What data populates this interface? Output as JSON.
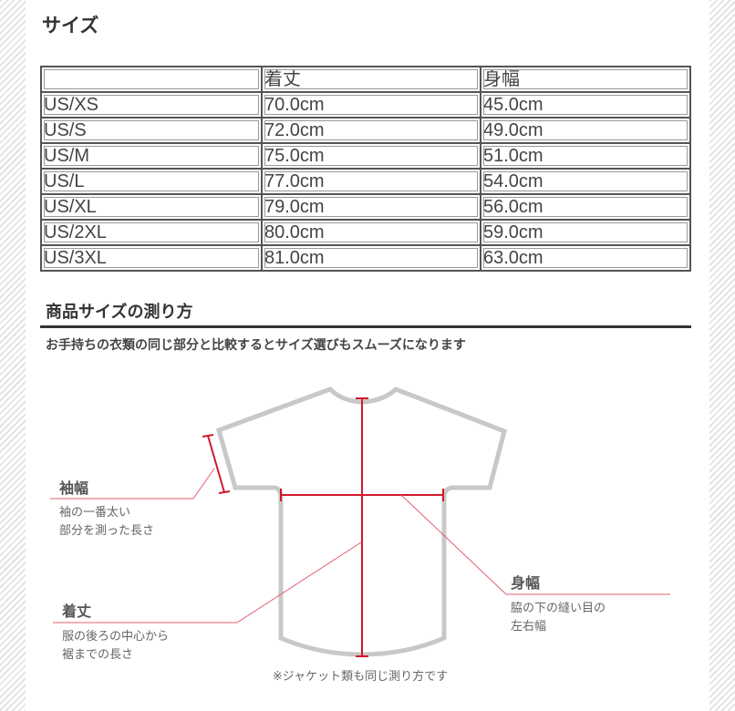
{
  "title": "サイズ",
  "table": {
    "headers": [
      "",
      "着丈",
      "身幅"
    ],
    "rows": [
      [
        "US/XS",
        "70.0cm",
        "45.0cm"
      ],
      [
        "US/S",
        "72.0cm",
        "49.0cm"
      ],
      [
        "US/M",
        "75.0cm",
        "51.0cm"
      ],
      [
        "US/L",
        "77.0cm",
        "54.0cm"
      ],
      [
        "US/XL",
        "79.0cm",
        "56.0cm"
      ],
      [
        "US/2XL",
        "80.0cm",
        "59.0cm"
      ],
      [
        "US/3XL",
        "81.0cm",
        "63.0cm"
      ]
    ]
  },
  "measure": {
    "heading": "商品サイズの測り方",
    "lead": "お手持ちの衣類の同じ部分と比較するとサイズ選びもスムーズになります",
    "sleeve": {
      "label": "袖幅",
      "desc1": "袖の一番太い",
      "desc2": "部分を測った長さ"
    },
    "length": {
      "label": "着丈",
      "desc1": "服の後ろの中心から",
      "desc2": "裾までの長さ"
    },
    "width": {
      "label": "身幅",
      "desc1": "脇の下の縫い目の",
      "desc2": "左右幅"
    },
    "note": "※ジャケット類も同じ測り方です"
  },
  "colors": {
    "measure_line": "#d0192b",
    "garment_outline": "#c8c8c8",
    "leader_line": "#e06070"
  }
}
